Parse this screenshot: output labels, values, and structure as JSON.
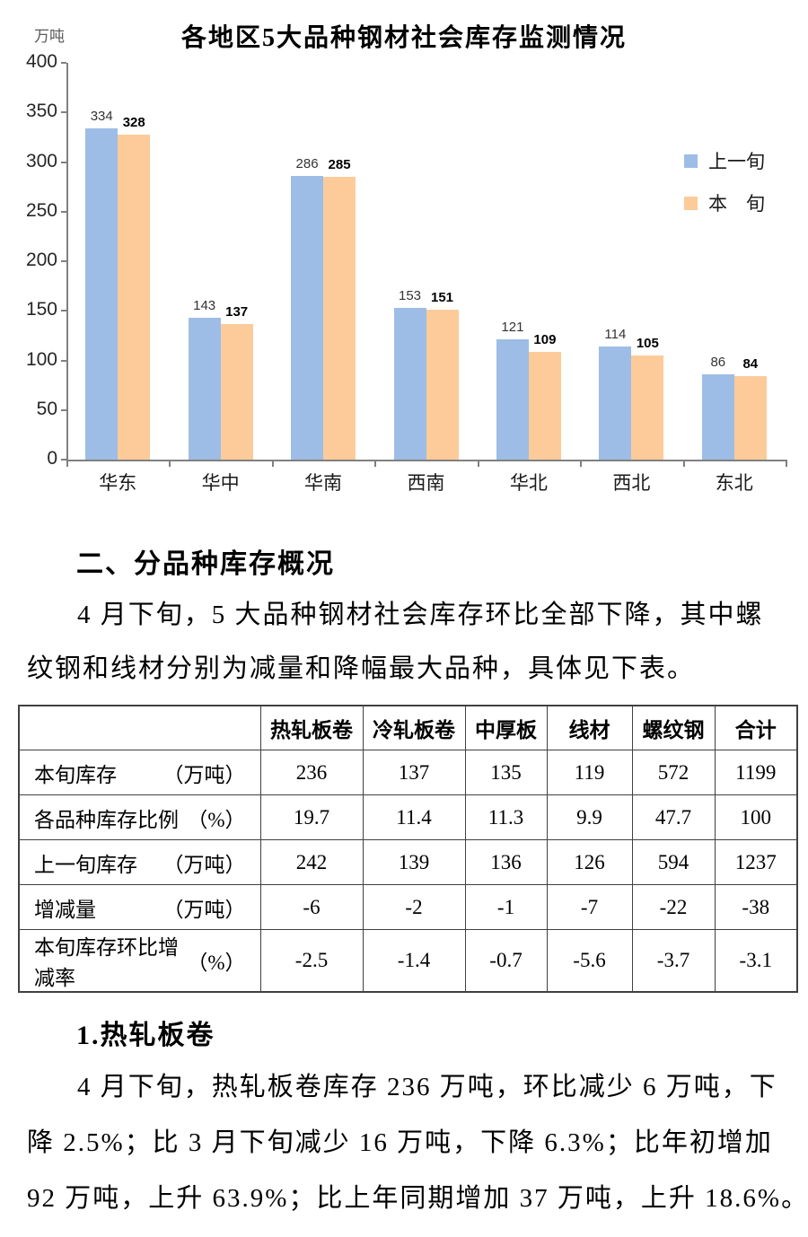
{
  "chart_data": {
    "type": "bar",
    "title": "各地区5大品种钢材社会库存监测情况",
    "unit_label": "万吨",
    "categories": [
      "华东",
      "华中",
      "华南",
      "西南",
      "华北",
      "西北",
      "东北"
    ],
    "series": [
      {
        "name": "上一旬",
        "color": "#9DBDE6",
        "values": [
          334,
          143,
          286,
          153,
          121,
          114,
          86
        ]
      },
      {
        "name": "本　旬",
        "color": "#FCCB99",
        "values": [
          328,
          137,
          285,
          151,
          109,
          105,
          84
        ]
      }
    ],
    "ylim": [
      0,
      400
    ],
    "ytick_step": 50,
    "grid": false,
    "data_labels": true,
    "legend_position": "middle-right",
    "axis_color": "#808080"
  },
  "document": {
    "section_heading": "二、分品种库存概况",
    "paragraph1_lines": [
      "4 月下旬，5 大品种钢材社会库存环比全部下降，其中螺",
      "纹钢和线材分别为减量和降幅最大品种，具体见下表。"
    ],
    "subsection_heading": "1.热轧板卷",
    "paragraph2_lines": [
      "4 月下旬，热轧板卷库存 236 万吨，环比减少 6 万吨，下",
      "降 2.5%；比 3 月下旬减少 16 万吨，下降 6.3%；比年初增加",
      "92 万吨，上升 63.9%；比上年同期增加 37 万吨，上升 18.6%。"
    ]
  },
  "table": {
    "col_headers": [
      "",
      "热轧板卷",
      "冷轧板卷",
      "中厚板",
      "线材",
      "螺纹钢",
      "合计"
    ],
    "rows": [
      {
        "label": "本旬库存",
        "unit": "（万吨）",
        "values": [
          "236",
          "137",
          "135",
          "119",
          "572",
          "1199"
        ]
      },
      {
        "label": "各品种库存比例",
        "unit": "（%）",
        "values": [
          "19.7",
          "11.4",
          "11.3",
          "9.9",
          "47.7",
          "100"
        ]
      },
      {
        "label": "上一旬库存",
        "unit": "（万吨）",
        "values": [
          "242",
          "139",
          "136",
          "126",
          "594",
          "1237"
        ]
      },
      {
        "label": "增减量",
        "unit": "（万吨）",
        "values": [
          "-6",
          "-2",
          "-1",
          "-7",
          "-22",
          "-38"
        ]
      },
      {
        "label": "本旬库存环比增减率",
        "unit": "（%）",
        "values": [
          "-2.5",
          "-1.4",
          "-0.7",
          "-5.6",
          "-3.7",
          "-3.1"
        ]
      }
    ]
  }
}
